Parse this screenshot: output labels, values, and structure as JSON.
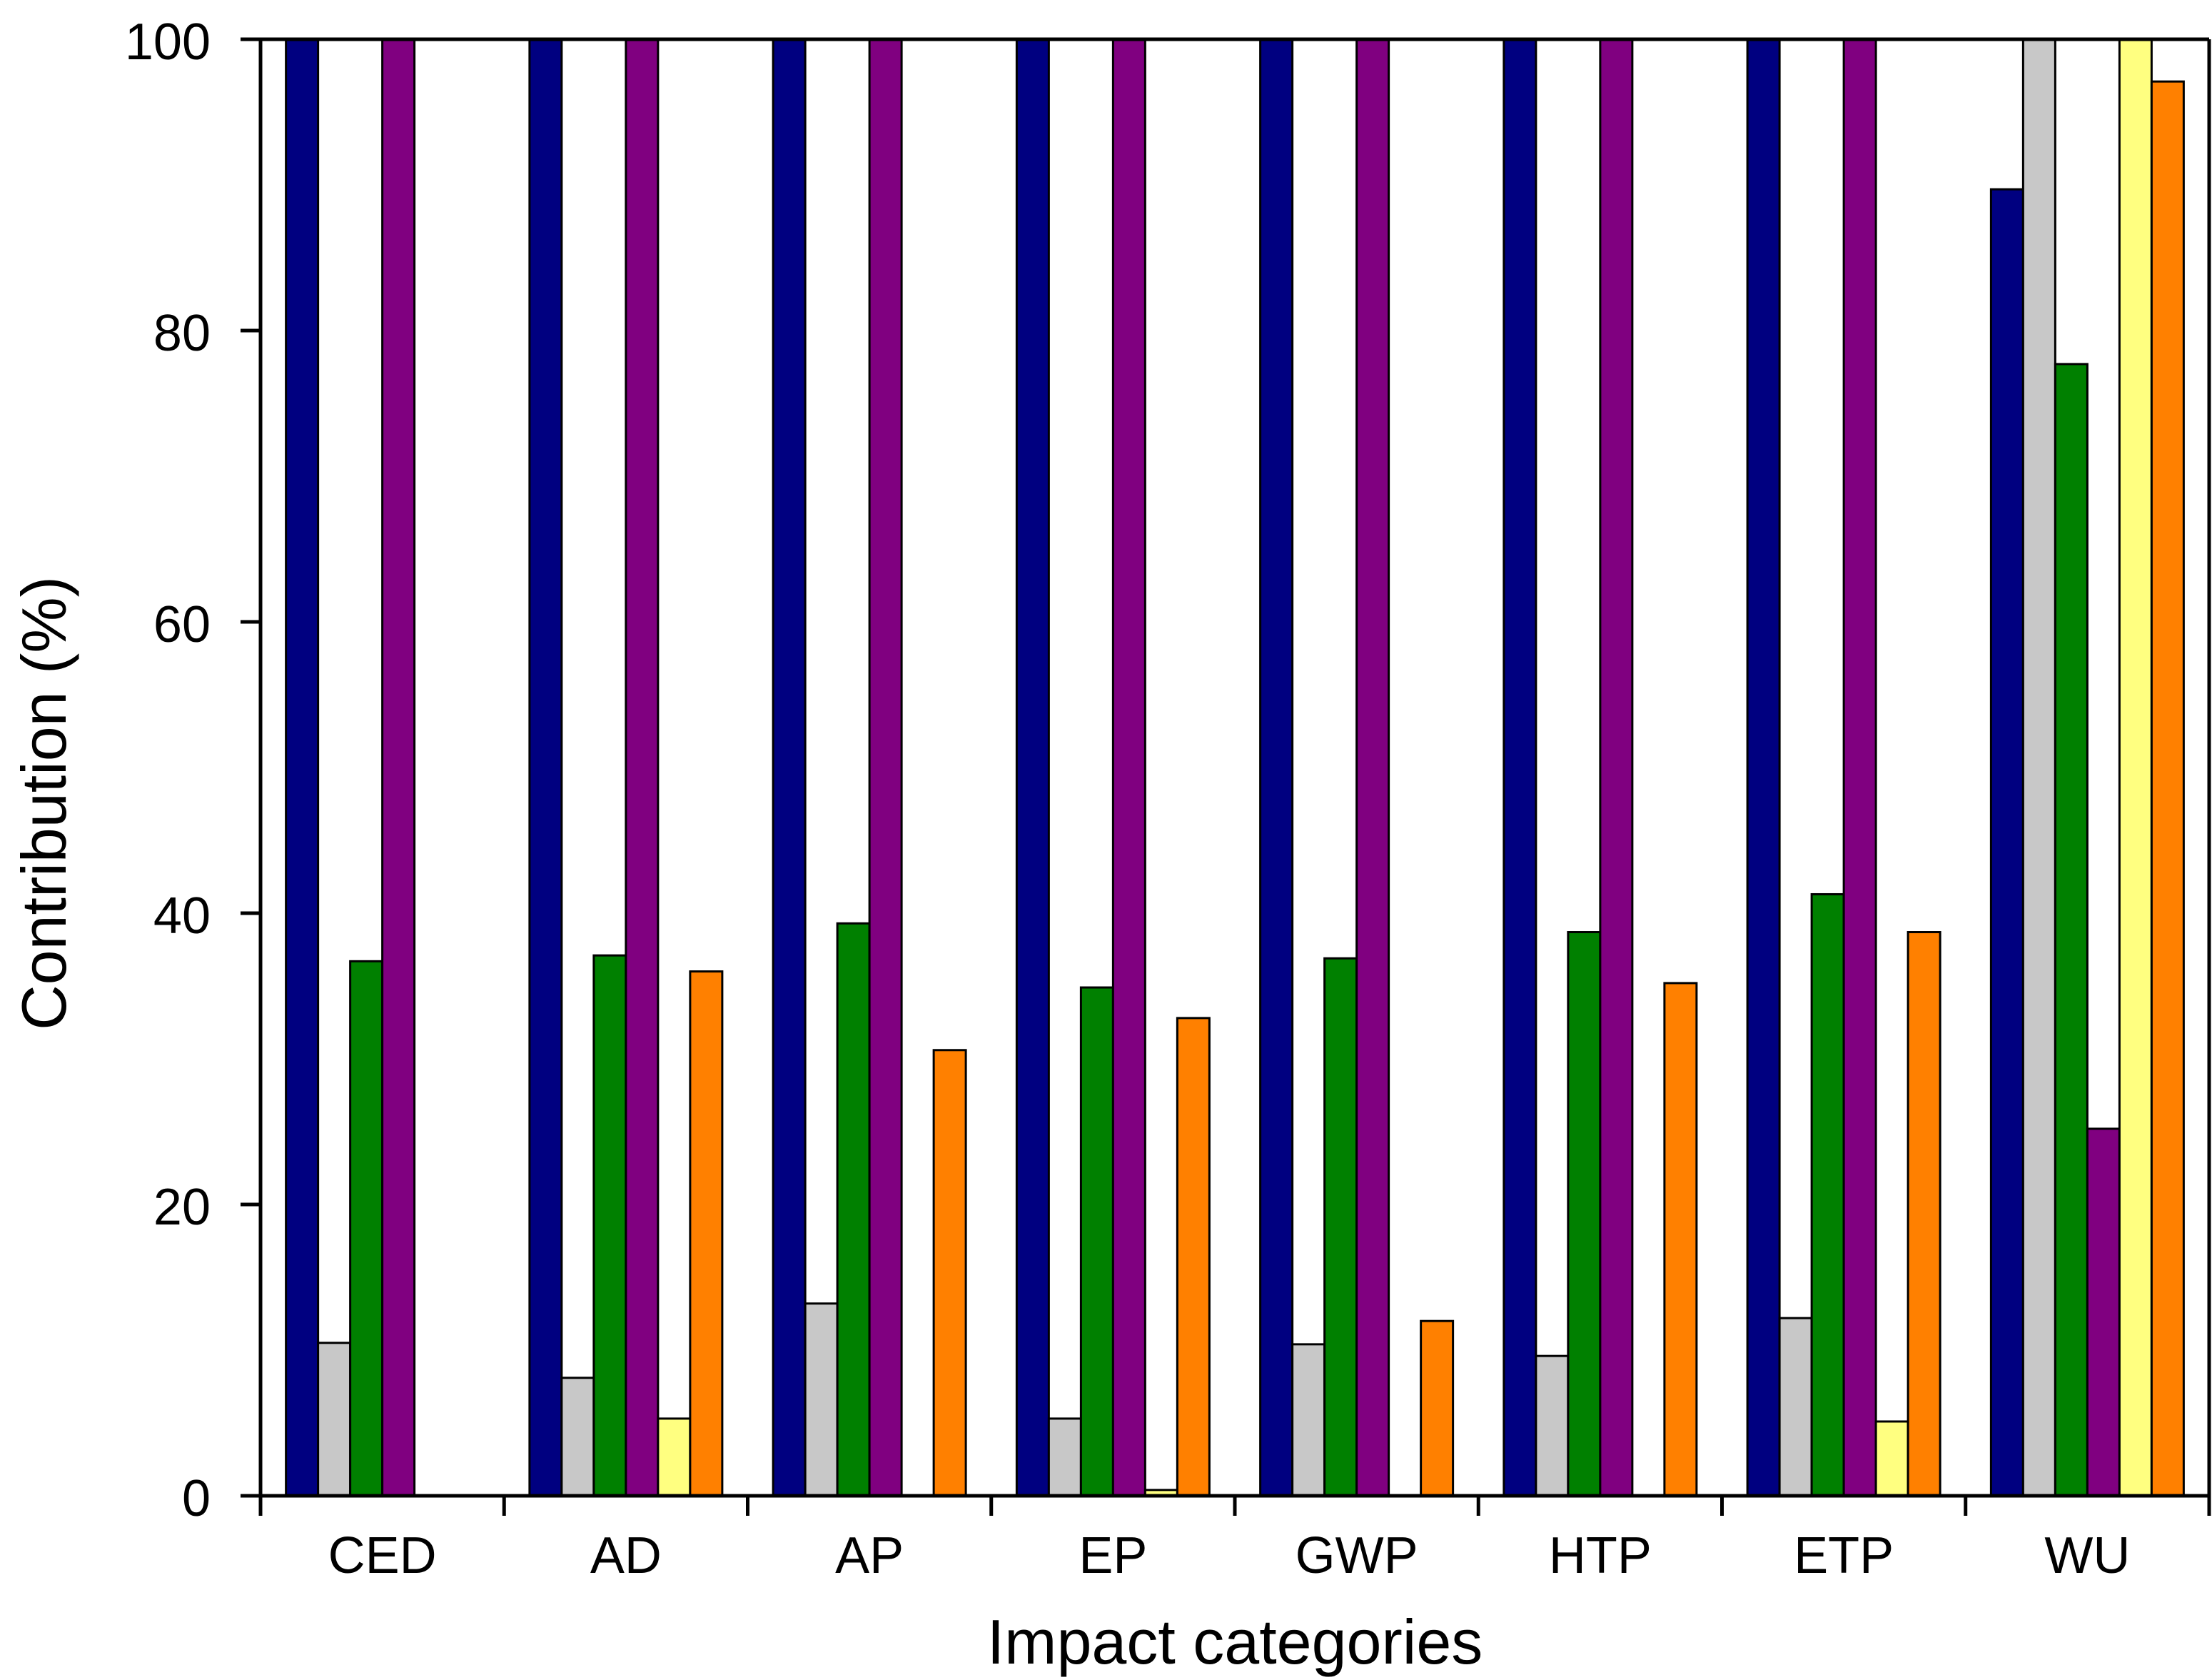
{
  "chart_data": {
    "type": "bar",
    "title": "",
    "xlabel": "Impact categories",
    "ylabel": "Contribution (%)",
    "ylim": [
      0,
      100
    ],
    "yticks": [
      0,
      20,
      40,
      60,
      80,
      100
    ],
    "grid": false,
    "legend": "none",
    "categories": [
      "CED",
      "AD",
      "AP",
      "EP",
      "GWP",
      "HTP",
      "ETP",
      "WU"
    ],
    "series": [
      {
        "color": "#000080",
        "values": [
          100,
          100,
          100,
          100,
          100,
          100,
          100,
          89.7
        ]
      },
      {
        "color": "#c8c8c8",
        "values": [
          10.5,
          8.1,
          13.2,
          5.3,
          10.4,
          9.6,
          12.2,
          100
        ]
      },
      {
        "color": "#008000",
        "values": [
          36.7,
          37.1,
          39.3,
          34.9,
          36.9,
          38.7,
          41.3,
          77.7
        ]
      },
      {
        "color": "#800080",
        "values": [
          100,
          100,
          100,
          100,
          100,
          100,
          100,
          25.2
        ]
      },
      {
        "color": "#ffff80",
        "values": [
          0,
          5.3,
          0,
          0.4,
          0,
          0,
          5.1,
          100
        ]
      },
      {
        "color": "#ff8000",
        "values": [
          0,
          36.0,
          30.6,
          32.8,
          12.0,
          35.2,
          38.7,
          97.1
        ]
      }
    ]
  }
}
